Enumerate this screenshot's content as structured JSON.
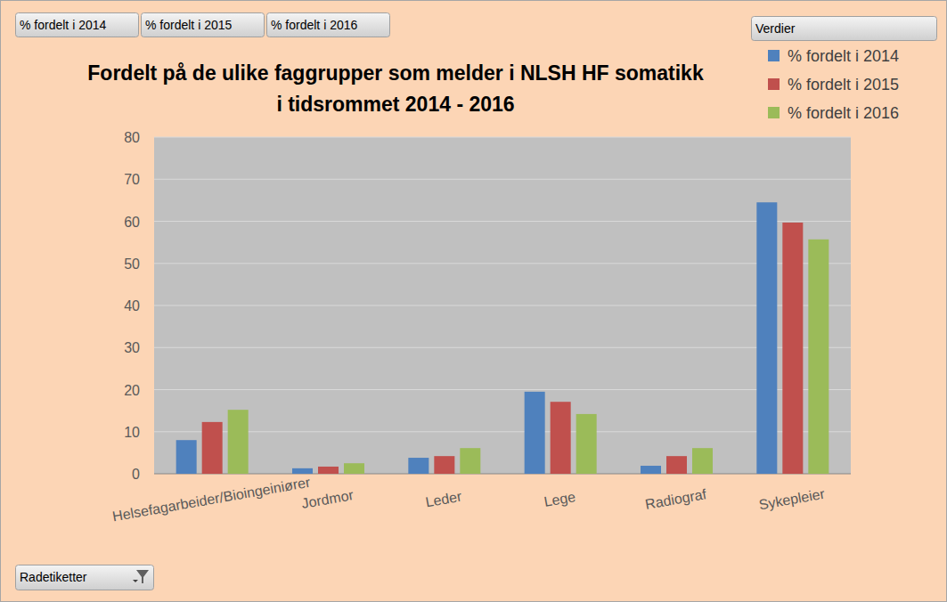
{
  "chart_data": {
    "type": "bar",
    "title": "Fordelt på de ulike faggrupper som melder i NLSH HF somatikk\ni tidsrommet 2014 - 2016",
    "field_buttons": [
      "% fordelt i 2014",
      "% fordelt i 2015",
      "% fordelt i 2016"
    ],
    "legend_title": "Verdier",
    "row_label_button": "Radetiketter",
    "categories": [
      "Helsefagarbeider/Bioingeiniører",
      "Jordmor",
      "Leder",
      "Lege",
      "Radiograf",
      "Sykepleier"
    ],
    "series": [
      {
        "name": "% fordelt i 2014",
        "color": "#4f81bd",
        "values": [
          8.0,
          1.3,
          3.8,
          19.5,
          1.9,
          64.5
        ]
      },
      {
        "name": "% fordelt i 2015",
        "color": "#c0504d",
        "values": [
          12.3,
          1.7,
          4.2,
          17.1,
          4.2,
          59.7
        ]
      },
      {
        "name": "% fordelt i 2016",
        "color": "#9bbb59",
        "values": [
          15.2,
          2.5,
          6.1,
          14.2,
          6.1,
          55.7
        ]
      }
    ],
    "ylim": [
      0,
      80
    ],
    "yticks": [
      0,
      10,
      20,
      30,
      40,
      50,
      60,
      70,
      80
    ],
    "grid": true,
    "legend": "top-right"
  }
}
